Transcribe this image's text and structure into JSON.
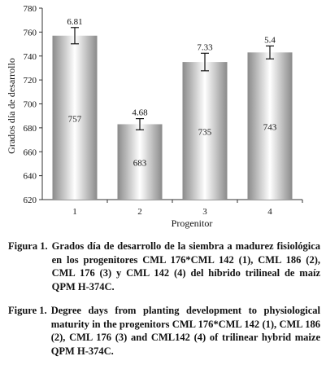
{
  "chart_data": {
    "type": "bar",
    "categories": [
      "1",
      "2",
      "3",
      "4"
    ],
    "values": [
      757,
      683,
      735,
      743
    ],
    "errors": [
      6.81,
      4.68,
      7.33,
      5.4
    ],
    "error_labels": [
      "6.81",
      "4.68",
      "7.33",
      "5.4"
    ],
    "value_labels": [
      "757",
      "683",
      "735",
      "743"
    ],
    "xlabel": "Progenitor",
    "ylabel": "Grados día de desarrollo",
    "ylim": [
      620,
      780
    ],
    "yticks": [
      "620",
      "640",
      "660",
      "680",
      "700",
      "720",
      "740",
      "760",
      "780"
    ],
    "grid": false,
    "bar_colors": [
      "#8a8a8a",
      "#ffffff"
    ]
  },
  "caption_es": {
    "prefix": "Figura 1.",
    "text": "Grados día de desarrollo de la siembra a madurez fisiológica en los progenitores CML 176*CML 142 (1), CML 186 (2), CML 176 (3) y CML 142 (4) del híbrido trilineal de maíz QPM H-374C."
  },
  "caption_en": {
    "prefix": "Figure 1.",
    "text": "Degree days from planting development to physiological maturity in the progenitors CML 176*CML 142 (1), CML 186 (2), CML 176 (3) and CML142 (4) of trilinear hybrid maize QPM H-374C."
  }
}
